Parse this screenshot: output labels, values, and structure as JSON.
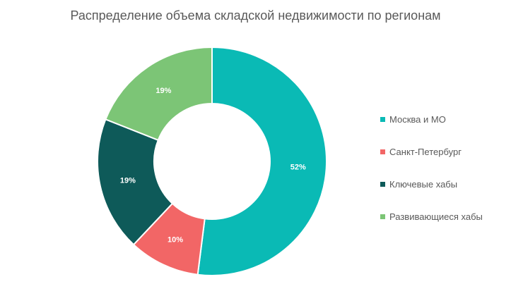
{
  "chart_data": {
    "type": "pie",
    "variant": "donut",
    "title": "Распределение объема складской недвижимости по регионам",
    "categories": [
      "Москва и МО",
      "Санкт-Петербург",
      "Ключевые хабы",
      "Развивающиеся хабы"
    ],
    "values": [
      52,
      10,
      19,
      19
    ],
    "labels": [
      "52%",
      "10%",
      "19%",
      "19%"
    ],
    "colors": [
      "#0ABAB5",
      "#F26666",
      "#0E5A59",
      "#7CC576"
    ],
    "legend_position": "right"
  }
}
